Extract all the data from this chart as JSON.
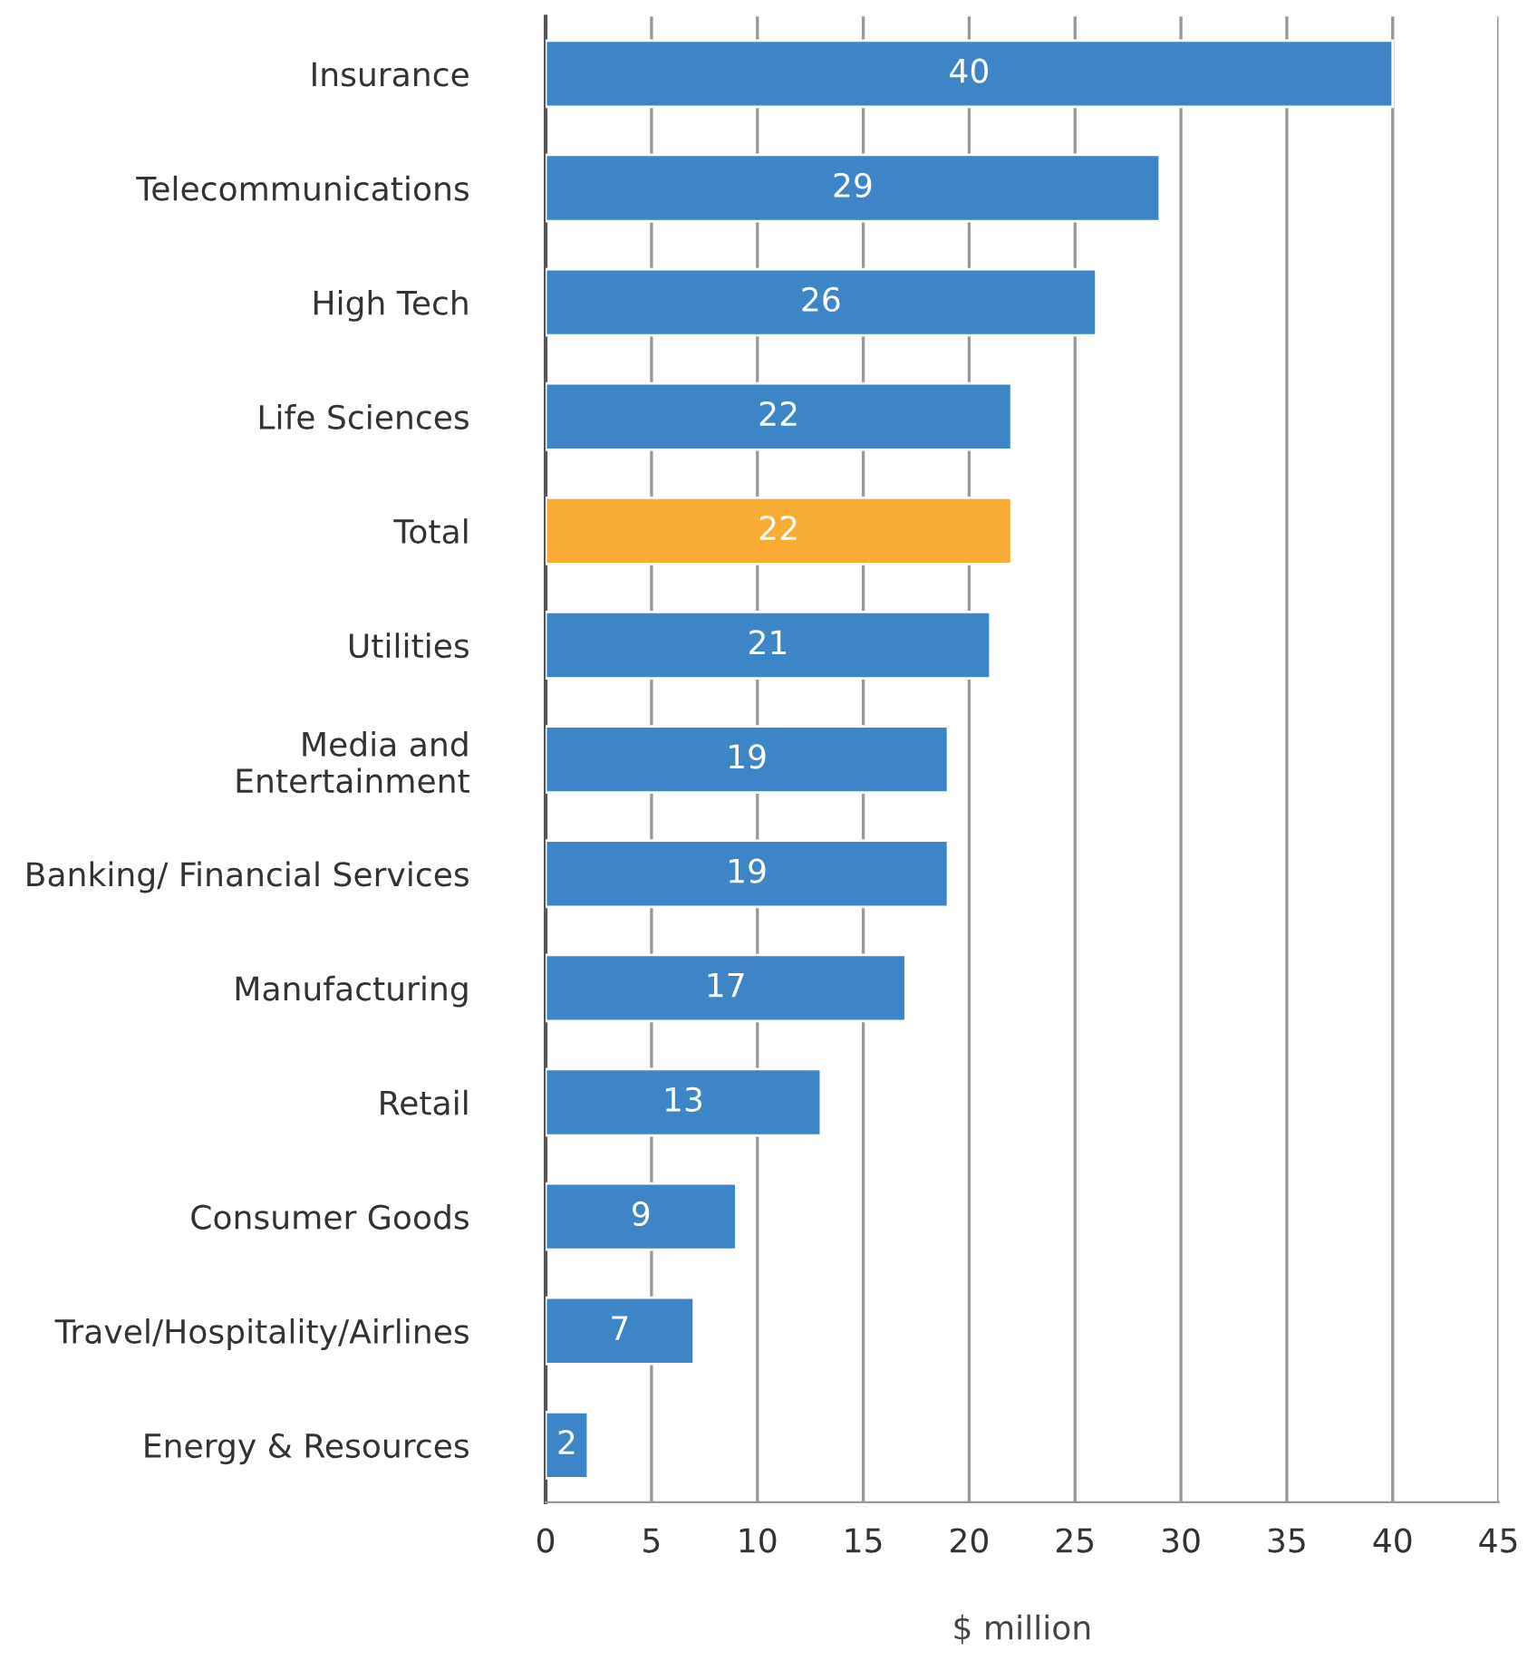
{
  "chart_data": {
    "type": "bar",
    "orientation": "horizontal",
    "xlabel": "$ million",
    "categories": [
      "Insurance",
      "Telecommunications",
      "High Tech",
      "Life Sciences",
      "Total",
      "Utilities",
      "Media and\nEntertainment",
      "Banking/ Financial Services",
      "Manufacturing",
      "Retail",
      "Consumer Goods",
      "Travel/Hospitality/Airlines",
      "Energy & Resources"
    ],
    "values": [
      40,
      29,
      26,
      22,
      22,
      21,
      19,
      19,
      17,
      13,
      9,
      7,
      2
    ],
    "colors": [
      "#3d85c6",
      "#3d85c6",
      "#3d85c6",
      "#3d85c6",
      "#f9ac35",
      "#3d85c6",
      "#3d85c6",
      "#3d85c6",
      "#3d85c6",
      "#3d85c6",
      "#3d85c6",
      "#3d85c6",
      "#3d85c6"
    ],
    "xlim": [
      0,
      45
    ],
    "xticks": [
      0,
      5,
      10,
      15,
      20,
      25,
      30,
      35,
      40,
      45
    ],
    "grid": "x",
    "data_labels": true,
    "legend": false
  }
}
